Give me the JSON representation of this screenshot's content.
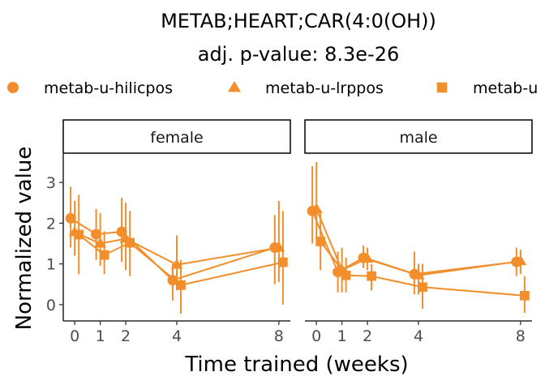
{
  "chart_data": {
    "type": "line",
    "title": "METAB;HEART;CAR(4:0(OH))",
    "subtitle": "adj. p-value: 8.3e-26",
    "xlabel": "Time trained (weeks)",
    "ylabel": "Normalized value",
    "x_ticks": [
      0,
      1,
      2,
      4,
      8
    ],
    "y_ticks": [
      0,
      1,
      2,
      3
    ],
    "ylim": [
      -0.4,
      3.7
    ],
    "color": "#f28e2b",
    "legend_position": "top",
    "legend": [
      {
        "label": "metab-u-hilicpos",
        "shape": "circle"
      },
      {
        "label": "metab-u-lrppos",
        "shape": "triangle"
      },
      {
        "label": "metab-u",
        "shape": "square"
      }
    ],
    "facets": [
      {
        "label": "female",
        "series": [
          {
            "name": "metab-u-hilicpos",
            "shape": "circle",
            "points": [
              {
                "x": 0,
                "y": 2.12,
                "lo": 1.4,
                "hi": 2.9
              },
              {
                "x": 1,
                "y": 1.73,
                "lo": 1.1,
                "hi": 2.35
              },
              {
                "x": 2,
                "y": 1.79,
                "lo": 1.05,
                "hi": 2.62
              },
              {
                "x": 4,
                "y": 0.6,
                "lo": 0.1,
                "hi": 1.0
              },
              {
                "x": 8,
                "y": 1.4,
                "lo": 0.5,
                "hi": 2.2
              }
            ]
          },
          {
            "name": "metab-u-lrppos",
            "shape": "triangle",
            "points": [
              {
                "x": 0,
                "y": 1.78,
                "lo": 1.2,
                "hi": 2.55
              },
              {
                "x": 1,
                "y": 1.5,
                "lo": 0.95,
                "hi": 2.25
              },
              {
                "x": 2,
                "y": 1.62,
                "lo": 0.85,
                "hi": 2.5
              },
              {
                "x": 4,
                "y": 0.98,
                "lo": 0.35,
                "hi": 1.7
              },
              {
                "x": 8,
                "y": 1.4,
                "lo": 0.55,
                "hi": 2.55
              }
            ]
          },
          {
            "name": "metab-u",
            "shape": "square",
            "points": [
              {
                "x": 0,
                "y": 1.72,
                "lo": 0.75,
                "hi": 2.7
              },
              {
                "x": 1,
                "y": 1.22,
                "lo": 0.75,
                "hi": 1.8
              },
              {
                "x": 2,
                "y": 1.52,
                "lo": 0.7,
                "hi": 2.3
              },
              {
                "x": 4,
                "y": 0.48,
                "lo": -0.22,
                "hi": 1.1
              },
              {
                "x": 8,
                "y": 1.04,
                "lo": 0.0,
                "hi": 2.3
              }
            ]
          }
        ]
      },
      {
        "label": "male",
        "series": [
          {
            "name": "metab-u-hilicpos",
            "shape": "circle",
            "points": [
              {
                "x": 0,
                "y": 2.3,
                "lo": 1.5,
                "hi": 3.4
              },
              {
                "x": 1,
                "y": 0.8,
                "lo": 0.3,
                "hi": 1.3
              },
              {
                "x": 2,
                "y": 1.15,
                "lo": 0.9,
                "hi": 1.45
              },
              {
                "x": 4,
                "y": 0.75,
                "lo": 0.25,
                "hi": 1.3
              },
              {
                "x": 8,
                "y": 1.05,
                "lo": 0.7,
                "hi": 1.4
              }
            ]
          },
          {
            "name": "metab-u-lrppos",
            "shape": "triangle",
            "points": [
              {
                "x": 0,
                "y": 2.35,
                "lo": 1.6,
                "hi": 3.5
              },
              {
                "x": 1,
                "y": 0.85,
                "lo": 0.3,
                "hi": 1.4
              },
              {
                "x": 2,
                "y": 1.13,
                "lo": 0.85,
                "hi": 1.4
              },
              {
                "x": 4,
                "y": 0.72,
                "lo": 0.25,
                "hi": 1.0
              },
              {
                "x": 8,
                "y": 1.07,
                "lo": 0.75,
                "hi": 1.35
              }
            ]
          },
          {
            "name": "metab-u",
            "shape": "square",
            "points": [
              {
                "x": 0,
                "y": 1.55,
                "lo": 0.85,
                "hi": 2.3
              },
              {
                "x": 1,
                "y": 0.72,
                "lo": 0.3,
                "hi": 1.15
              },
              {
                "x": 2,
                "y": 0.7,
                "lo": 0.35,
                "hi": 1.0
              },
              {
                "x": 4,
                "y": 0.43,
                "lo": -0.1,
                "hi": 1.0
              },
              {
                "x": 8,
                "y": 0.22,
                "lo": -0.2,
                "hi": 0.7
              }
            ]
          }
        ]
      }
    ]
  }
}
